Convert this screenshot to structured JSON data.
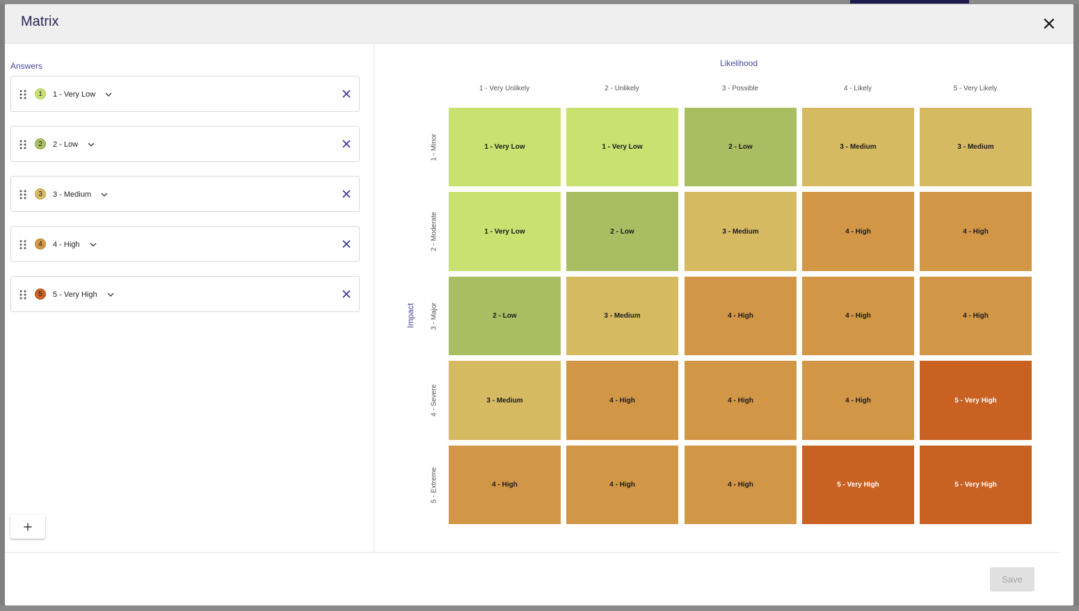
{
  "modal": {
    "title": "Matrix",
    "close_icon": "close-icon"
  },
  "answers": {
    "label": "Answers",
    "items": [
      {
        "number": "1",
        "label": "1 - Very Low",
        "color": "#c8e170"
      },
      {
        "number": "2",
        "label": "2 - Low",
        "color": "#a9bd62"
      },
      {
        "number": "3",
        "label": "3 - Medium",
        "color": "#d6ba62"
      },
      {
        "number": "4",
        "label": "4 - High",
        "color": "#d29647"
      },
      {
        "number": "5",
        "label": "5 - Very High",
        "color": "#c86122"
      }
    ],
    "add_icon": "plus-icon",
    "remove_icon": "close-icon",
    "drag_icon": "drag-handle-icon",
    "dropdown_icon": "chevron-down-icon"
  },
  "matrix": {
    "likelihood_label": "Likelihood",
    "impact_label": "Impact",
    "columns": [
      "1 - Very Unlikely",
      "2 - Unlikely",
      "3 - Possible",
      "4 - Likely",
      "5 - Very Likely"
    ],
    "rows": [
      "1 - Minor",
      "2 - Moderate",
      "3 - Major",
      "4 - Severe",
      "5 - Extreme"
    ],
    "cells": [
      [
        1,
        1,
        2,
        3,
        3
      ],
      [
        1,
        2,
        3,
        4,
        4
      ],
      [
        2,
        3,
        4,
        4,
        4
      ],
      [
        3,
        4,
        4,
        4,
        5
      ],
      [
        4,
        4,
        4,
        5,
        5
      ]
    ]
  },
  "footer": {
    "save_label": "Save"
  }
}
